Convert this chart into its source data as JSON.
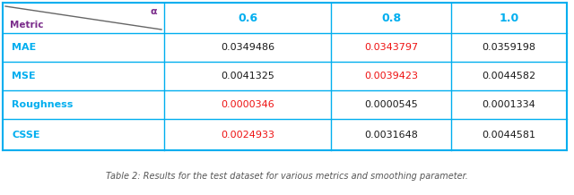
{
  "title": "Table 2: Results for the test dataset for various metrics and smoothing parameter.",
  "header_metric": "Metric",
  "header_alpha": "α",
  "col_headers": [
    "0.6",
    "0.8",
    "1.0"
  ],
  "row_headers": [
    "MAE",
    "MSE",
    "Roughness",
    "CSSE"
  ],
  "values": [
    [
      "0.0349486",
      "0.0343797",
      "0.0359198"
    ],
    [
      "0.0041325",
      "0.0039423",
      "0.0044582"
    ],
    [
      "0.0000346",
      "0.0000545",
      "0.0001334"
    ],
    [
      "0.0024933",
      "0.0031648",
      "0.0044581"
    ]
  ],
  "highlight_red": [
    [
      false,
      true,
      false
    ],
    [
      false,
      true,
      false
    ],
    [
      true,
      false,
      false
    ],
    [
      true,
      false,
      false
    ]
  ],
  "header_color": "#00AEEF",
  "metric_color": "#7B2D8B",
  "row_header_color": "#00AEEF",
  "red_color": "#EE1111",
  "black_color": "#1a1a1a",
  "border_color": "#00AEEF",
  "bg_color": "#FFFFFF",
  "caption_color": "#555555"
}
